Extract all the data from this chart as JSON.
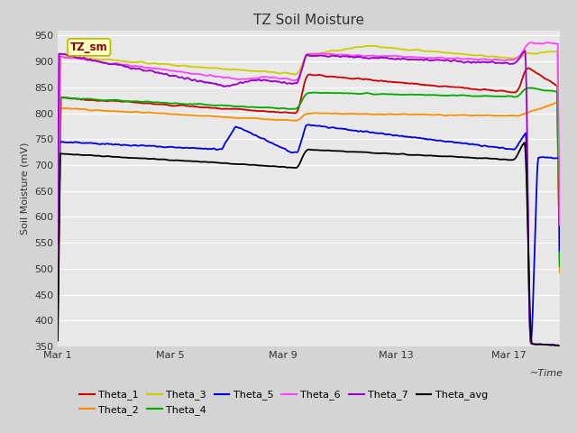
{
  "title": "TZ Soil Moisture",
  "ylabel": "Soil Moisture (mV)",
  "ylim": [
    350,
    960
  ],
  "yticks": [
    350,
    400,
    450,
    500,
    550,
    600,
    650,
    700,
    750,
    800,
    850,
    900,
    950
  ],
  "fig_bg": "#d4d4d4",
  "plot_bg": "#e8e8e8",
  "grid_color": "#ffffff",
  "legend_label": "TZ_sm",
  "legend_label_color": "#8b0000",
  "legend_box_facecolor": "#ffffc0",
  "legend_box_edgecolor": "#b8b800",
  "series": {
    "Theta_1": {
      "color": "#cc0000"
    },
    "Theta_2": {
      "color": "#ff8c00"
    },
    "Theta_3": {
      "color": "#cccc00"
    },
    "Theta_4": {
      "color": "#00aa00"
    },
    "Theta_5": {
      "color": "#0000dd"
    },
    "Theta_6": {
      "color": "#ff44ff"
    },
    "Theta_7": {
      "color": "#9900cc"
    },
    "Theta_avg": {
      "color": "#000000"
    }
  },
  "xtick_labels": [
    "Mar 1",
    "Mar 5",
    "Mar 9",
    "Mar 13",
    "Mar 17"
  ],
  "xtick_positions": [
    0,
    4,
    8,
    12,
    16
  ]
}
